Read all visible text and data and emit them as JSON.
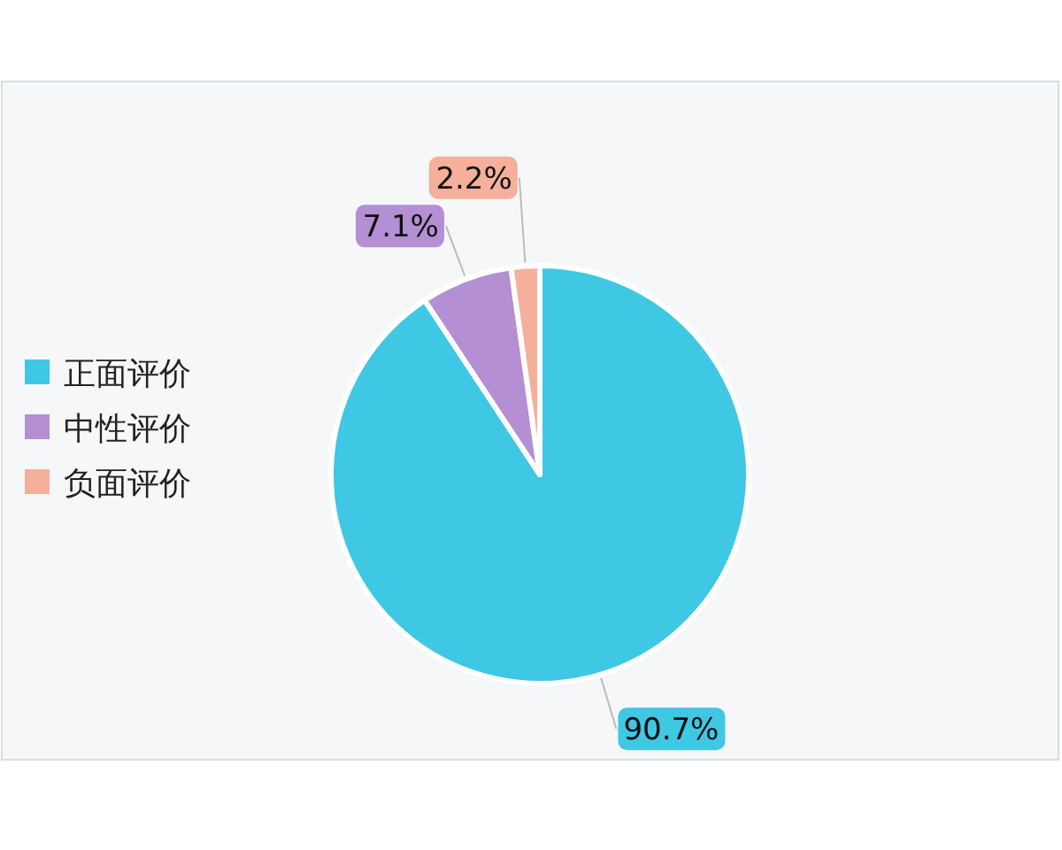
{
  "chart_data": {
    "type": "pie",
    "categories": [
      "正面评价",
      "中性评价",
      "负面评价"
    ],
    "values": [
      90.7,
      7.1,
      2.2
    ],
    "colors": [
      "#3ec8e4",
      "#b48fd4",
      "#f4b09a"
    ],
    "value_labels": [
      "90.7%",
      "7.1%",
      "2.2%"
    ],
    "legend": "left"
  }
}
